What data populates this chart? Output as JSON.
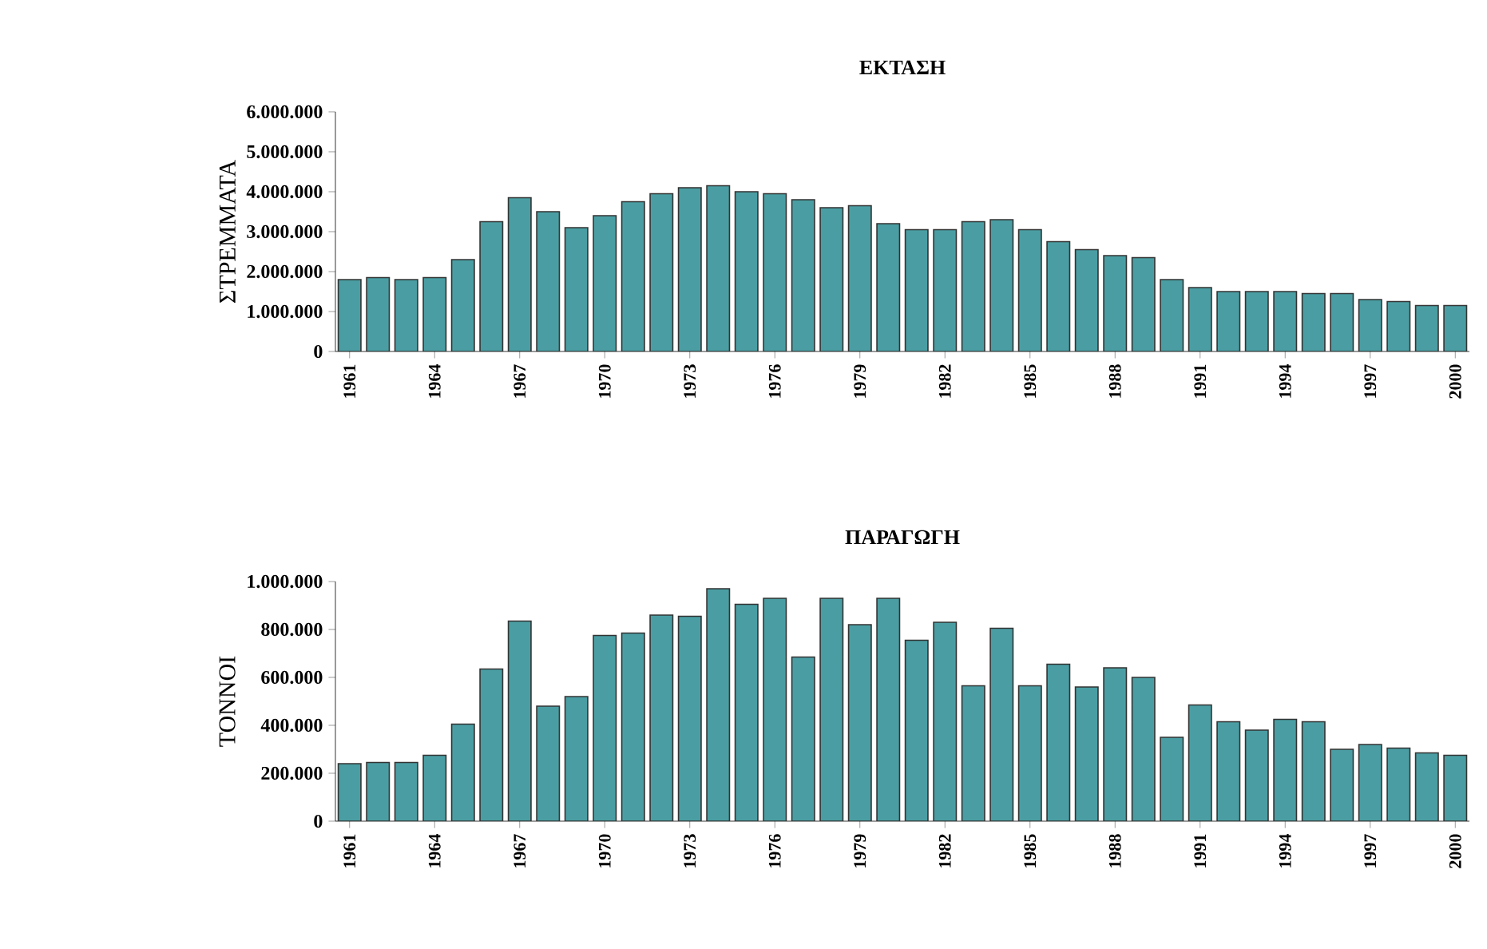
{
  "chart_data": [
    {
      "type": "bar",
      "title": "ΕΚΤΑΣΗ",
      "ylabel": "ΣΤΡΕΜΜΑΤΑ",
      "categories": [
        "1961",
        null,
        null,
        "1964",
        null,
        null,
        "1967",
        null,
        null,
        "1970",
        null,
        null,
        "1973",
        null,
        null,
        "1976",
        null,
        null,
        "1979",
        null,
        null,
        "1982",
        null,
        null,
        "1985",
        null,
        null,
        "1988",
        null,
        null,
        "1991",
        null,
        null,
        "1994",
        null,
        null,
        "1997",
        null,
        null,
        "2000"
      ],
      "values": [
        1800000,
        1850000,
        1800000,
        1850000,
        2300000,
        3250000,
        3850000,
        3500000,
        3100000,
        3400000,
        3750000,
        3950000,
        4100000,
        4150000,
        4000000,
        3950000,
        3800000,
        3600000,
        3650000,
        3200000,
        3050000,
        3050000,
        3250000,
        3300000,
        3050000,
        2750000,
        2550000,
        2400000,
        2350000,
        1800000,
        1600000,
        1500000,
        1500000,
        1500000,
        1450000,
        1450000,
        1300000,
        1250000,
        1150000,
        1150000
      ],
      "color": "#4a9ea3",
      "ylim": [
        0,
        6000000
      ],
      "yticks": [
        0,
        {
          "value": 1000000,
          "label": "1.000.000"
        },
        {
          "value": 2000000,
          "label": "2.000.000"
        },
        {
          "value": 3000000,
          "label": "3.000.000"
        },
        {
          "value": 4000000,
          "label": "4.000.000"
        },
        {
          "value": 5000000,
          "label": "5.000.000"
        },
        {
          "value": 6000000,
          "label": "6.000.000"
        }
      ]
    },
    {
      "type": "bar",
      "title": "ΠΑΡΑΓΩΓΗ",
      "ylabel": "ΤΟΝΝΟΙ",
      "categories": [
        "1961",
        null,
        null,
        "1964",
        null,
        null,
        "1967",
        null,
        null,
        "1970",
        null,
        null,
        "1973",
        null,
        null,
        "1976",
        null,
        null,
        "1979",
        null,
        null,
        "1982",
        null,
        null,
        "1985",
        null,
        null,
        "1988",
        null,
        null,
        "1991",
        null,
        null,
        "1994",
        null,
        null,
        "1997",
        null,
        null,
        "2000"
      ],
      "values": [
        240000,
        245000,
        245000,
        275000,
        405000,
        635000,
        835000,
        480000,
        520000,
        775000,
        785000,
        860000,
        855000,
        970000,
        905000,
        930000,
        685000,
        930000,
        820000,
        930000,
        755000,
        830000,
        565000,
        805000,
        565000,
        655000,
        560000,
        640000,
        600000,
        350000,
        485000,
        415000,
        380000,
        425000,
        415000,
        300000,
        320000,
        305000,
        285000,
        275000
      ],
      "color": "#4a9ea3",
      "ylim": [
        0,
        1000000
      ],
      "yticks": [
        0,
        {
          "value": 200000,
          "label": "200.000"
        },
        {
          "value": 400000,
          "label": "400.000"
        },
        {
          "value": 600000,
          "label": "600.000"
        },
        {
          "value": 800000,
          "label": "800.000"
        },
        {
          "value": 1000000,
          "label": "1.000.000"
        }
      ]
    }
  ]
}
